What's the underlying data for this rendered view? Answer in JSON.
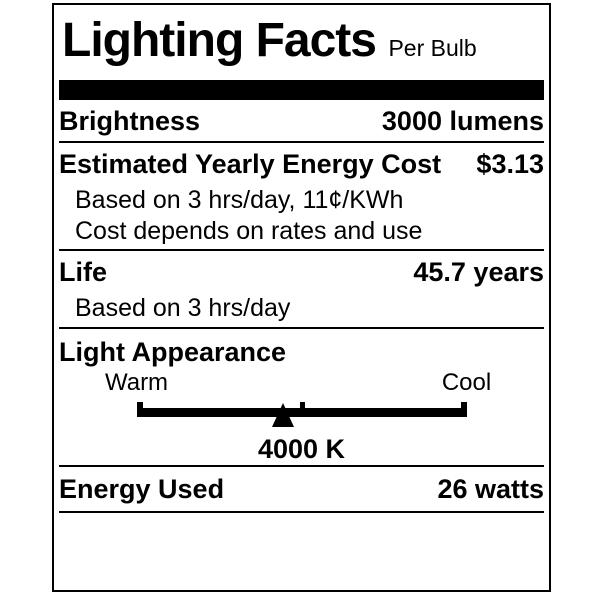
{
  "label": {
    "title": "Lighting Facts",
    "per_unit": "Per Bulb",
    "brightness": {
      "name": "Brightness",
      "value": "3000 lumens"
    },
    "energy_cost": {
      "name": "Estimated Yearly Energy Cost",
      "value": "$3.13",
      "note1": "Based on 3 hrs/day, 11¢/KWh",
      "note2": "Cost depends on rates and use"
    },
    "life": {
      "name": "Life",
      "value": "45.7 years",
      "note1": "Based on 3 hrs/day"
    },
    "light_appearance": {
      "name": "Light Appearance",
      "warm_label": "Warm",
      "cool_label": "Cool",
      "color_temperature": "4000 K",
      "marker_position": "44.5%"
    },
    "energy_used": {
      "name": "Energy Used",
      "value": "26 watts"
    },
    "colors": {
      "ink": "#000000",
      "paper": "#ffffff"
    }
  }
}
